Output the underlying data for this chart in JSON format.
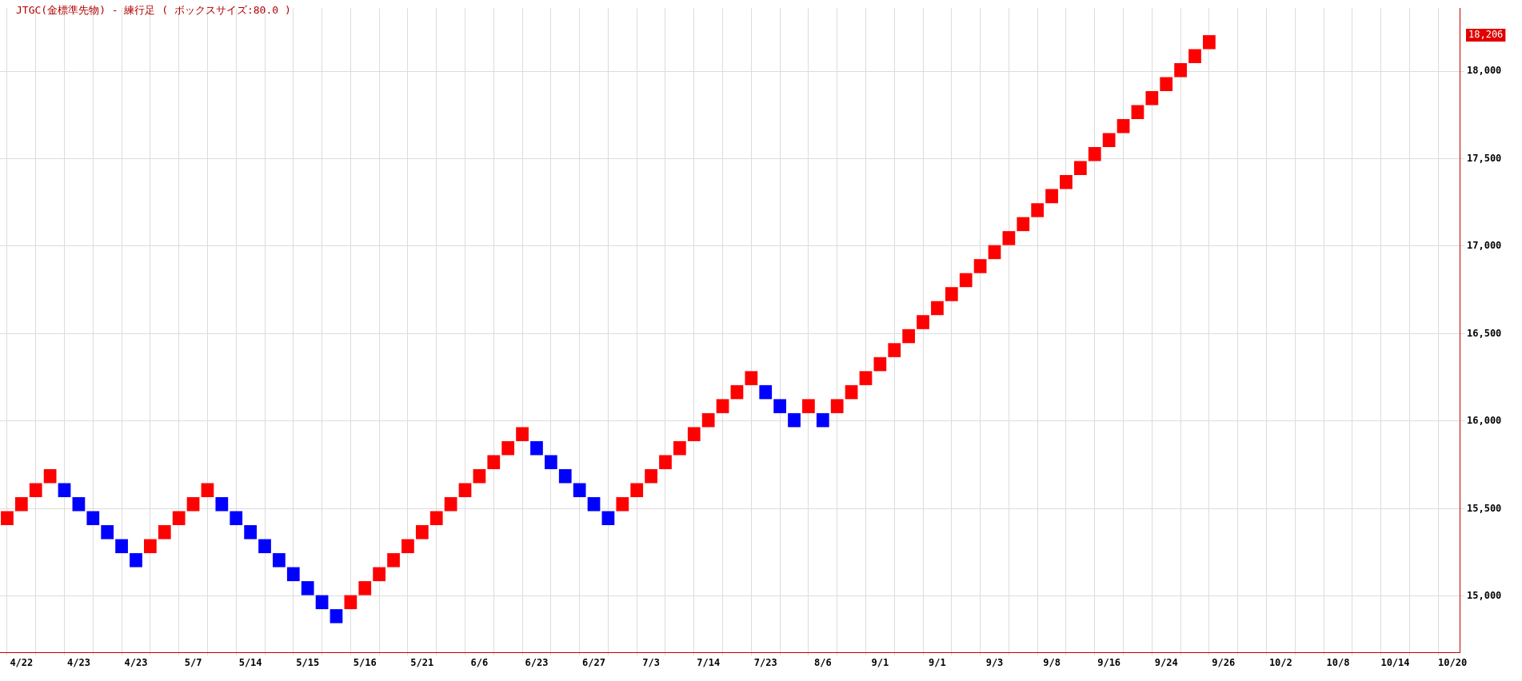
{
  "chart_data": {
    "type": "bar",
    "title": "JTGC(金標準先物) - 練行足 ( ボックスサイズ:80.0 )",
    "categories": [
      null,
      "4/22",
      null,
      null,
      null,
      "4/23",
      null,
      null,
      null,
      "4/23",
      null,
      null,
      null,
      "5/7",
      null,
      null,
      null,
      "5/14",
      null,
      null,
      null,
      "5/15",
      null,
      null,
      null,
      "5/16",
      null,
      null,
      null,
      "5/21",
      null,
      null,
      null,
      "6/6",
      null,
      null,
      null,
      "6/23",
      null,
      null,
      null,
      "6/27",
      null,
      null,
      null,
      "7/3",
      null,
      null,
      null,
      "7/14",
      null,
      null,
      null,
      "7/23",
      null,
      null,
      null,
      "8/6",
      null,
      null,
      null,
      "9/1",
      null,
      null,
      null,
      "9/1",
      null,
      null,
      null,
      "9/3",
      null,
      null,
      null,
      "9/8",
      null,
      null,
      null,
      "9/16",
      null,
      null,
      null,
      "9/24",
      null,
      null,
      null,
      "9/26",
      null,
      null,
      null,
      "10/2",
      null,
      null,
      null,
      "10/8",
      null,
      null,
      null,
      "10/14",
      null,
      null,
      null,
      "10/20"
    ],
    "base": [
      15406,
      15486,
      15566,
      15646,
      15566,
      15486,
      15406,
      15326,
      15246,
      15166,
      15246,
      15326,
      15406,
      15486,
      15566,
      15486,
      15406,
      15326,
      15246,
      15166,
      15086,
      15006,
      14926,
      14846,
      14926,
      15006,
      15086,
      15166,
      15246,
      15326,
      15406,
      15486,
      15566,
      15646,
      15726,
      15806,
      15886,
      15806,
      15726,
      15646,
      15566,
      15486,
      15406,
      15486,
      15566,
      15646,
      15726,
      15806,
      15886,
      15966,
      16046,
      16126,
      16206,
      16126,
      16046,
      15966,
      16046,
      15966,
      16046,
      16126,
      16206,
      16286,
      16366,
      16446,
      16526,
      16606,
      16686,
      16766,
      16846,
      16926,
      17006,
      17086,
      17166,
      17246,
      17326,
      17406,
      17486,
      17566,
      17646,
      17726,
      17806,
      17886,
      17966,
      18046,
      18126,
      null,
      null,
      null,
      null,
      null,
      null,
      null,
      null,
      null,
      null,
      null,
      null,
      null,
      null,
      null,
      null,
      null
    ],
    "values": [
      80,
      80,
      80,
      80,
      80,
      80,
      80,
      80,
      80,
      80,
      80,
      80,
      80,
      80,
      80,
      80,
      80,
      80,
      80,
      80,
      80,
      80,
      80,
      80,
      80,
      80,
      80,
      80,
      80,
      80,
      80,
      80,
      80,
      80,
      80,
      80,
      80,
      80,
      80,
      80,
      80,
      80,
      80,
      80,
      80,
      80,
      80,
      80,
      80,
      80,
      80,
      80,
      80,
      80,
      80,
      80,
      80,
      80,
      80,
      80,
      80,
      80,
      80,
      80,
      80,
      80,
      80,
      80,
      80,
      80,
      80,
      80,
      80,
      80,
      80,
      80,
      80,
      80,
      80,
      80,
      80,
      80,
      80,
      80,
      80,
      null,
      null,
      null,
      null,
      null,
      null,
      null,
      null,
      null,
      null,
      null,
      null,
      null,
      null,
      null,
      null,
      null
    ],
    "colors": [
      "#ff0000",
      "#ff0000",
      "#ff0000",
      "#ff0000",
      "#0000ff",
      "#0000ff",
      "#0000ff",
      "#0000ff",
      "#0000ff",
      "#0000ff",
      "#ff0000",
      "#ff0000",
      "#ff0000",
      "#ff0000",
      "#ff0000",
      "#0000ff",
      "#0000ff",
      "#0000ff",
      "#0000ff",
      "#0000ff",
      "#0000ff",
      "#0000ff",
      "#0000ff",
      "#0000ff",
      "#ff0000",
      "#ff0000",
      "#ff0000",
      "#ff0000",
      "#ff0000",
      "#ff0000",
      "#ff0000",
      "#ff0000",
      "#ff0000",
      "#ff0000",
      "#ff0000",
      "#ff0000",
      "#ff0000",
      "#0000ff",
      "#0000ff",
      "#0000ff",
      "#0000ff",
      "#0000ff",
      "#0000ff",
      "#ff0000",
      "#ff0000",
      "#ff0000",
      "#ff0000",
      "#ff0000",
      "#ff0000",
      "#ff0000",
      "#ff0000",
      "#ff0000",
      "#ff0000",
      "#0000ff",
      "#0000ff",
      "#0000ff",
      "#ff0000",
      "#0000ff",
      "#ff0000",
      "#ff0000",
      "#ff0000",
      "#ff0000",
      "#ff0000",
      "#ff0000",
      "#ff0000",
      "#ff0000",
      "#ff0000",
      "#ff0000",
      "#ff0000",
      "#ff0000",
      "#ff0000",
      "#ff0000",
      "#ff0000",
      "#ff0000",
      "#ff0000",
      "#ff0000",
      "#ff0000",
      "#ff0000",
      "#ff0000",
      "#ff0000",
      "#ff0000",
      "#ff0000",
      "#ff0000",
      "#ff0000",
      "#ff0000",
      null,
      null,
      null,
      null,
      null,
      null,
      null,
      null,
      null,
      null,
      null,
      null,
      null,
      null,
      null,
      null,
      null
    ],
    "ylim": [
      14680,
      18360
    ],
    "yticks": [
      {
        "value": 15000,
        "label": "15,000"
      },
      {
        "value": 15500,
        "label": "15,500"
      },
      {
        "value": 16000,
        "label": "16,000"
      },
      {
        "value": 16500,
        "label": "16,500"
      },
      {
        "value": 17000,
        "label": "17,000"
      },
      {
        "value": 17500,
        "label": "17,500"
      },
      {
        "value": 18000,
        "label": "18,000"
      }
    ],
    "grid": true,
    "annotations": [
      "18,206"
    ]
  }
}
